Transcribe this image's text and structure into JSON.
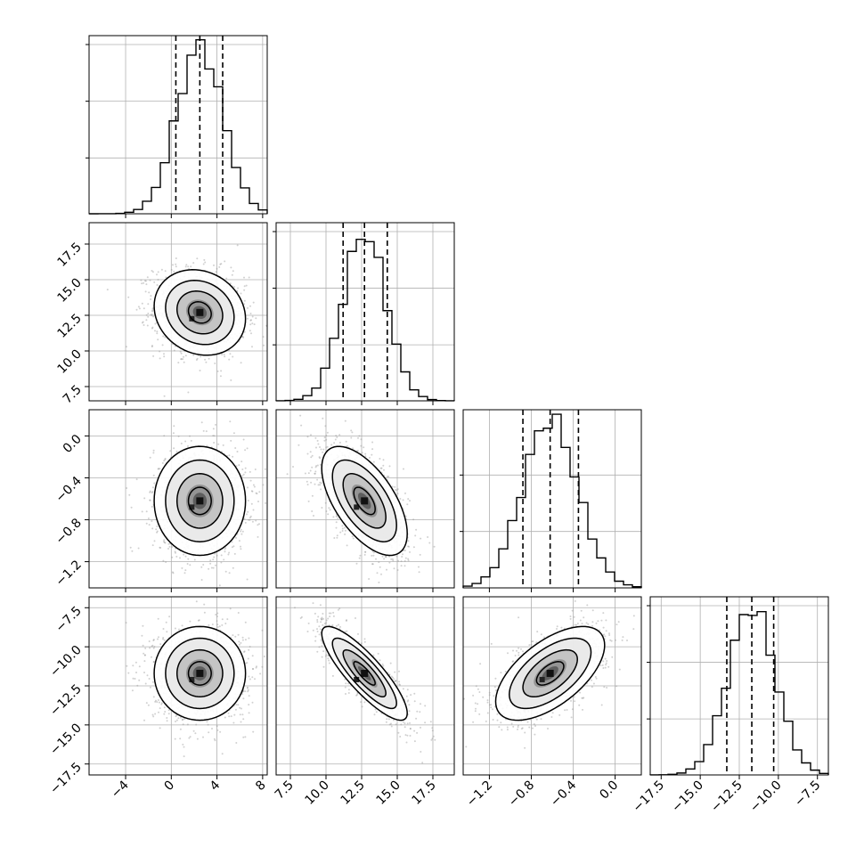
{
  "chart_data": {
    "type": "corner",
    "parameters": [
      {
        "id": "p0",
        "ticks": [
          -4,
          0,
          4,
          8
        ],
        "tick_labels": [
          "−4",
          "0",
          "4",
          "8"
        ],
        "range": [
          -7.2,
          8.4
        ],
        "quantiles": [
          0.4,
          2.5,
          4.5
        ],
        "mean": 2.5,
        "sd": 2.0,
        "hist_peak_density": 0.2,
        "hist_ticks": [
          0.066,
          0.133,
          0.2
        ]
      },
      {
        "id": "p1",
        "ticks": [
          7.5,
          10.0,
          12.5,
          15.0,
          17.5
        ],
        "tick_labels": [
          "7.5",
          "10.0",
          "12.5",
          "15.0",
          "17.5"
        ],
        "range": [
          6.5,
          19.0
        ],
        "quantiles": [
          11.2,
          12.7,
          14.3
        ],
        "mean": 12.7,
        "sd": 1.5,
        "hist_peak_density": 0.266,
        "hist_ticks": [
          0.088,
          0.177,
          0.266
        ]
      },
      {
        "id": "p2",
        "ticks": [
          -1.2,
          -0.8,
          -0.4,
          0.0
        ],
        "tick_labels": [
          "−1.2",
          "−0.8",
          "−0.4",
          "0.0"
        ],
        "range": [
          -1.45,
          0.25
        ],
        "quantiles": [
          -0.88,
          -0.62,
          -0.35
        ],
        "mean": -0.62,
        "sd": 0.26,
        "hist_peak_density": 1.53,
        "hist_ticks": [
          0.51,
          1.02
        ]
      },
      {
        "id": "p3",
        "ticks": [
          -17.5,
          -15.0,
          -12.5,
          -10.0,
          -7.5
        ],
        "tick_labels": [
          "−17.5",
          "−15.0",
          "−12.5",
          "−10.0",
          "−7.5"
        ],
        "range": [
          -18.2,
          -6.8
        ],
        "quantiles": [
          -13.3,
          -11.7,
          -10.3
        ],
        "mean": -11.7,
        "sd": 1.5,
        "hist_peak_density": 0.266,
        "hist_ticks": [
          0.088,
          0.177,
          0.266
        ]
      }
    ],
    "correlations": [
      {
        "i": 0,
        "j": 1,
        "rho": -0.15
      },
      {
        "i": 0,
        "j": 2,
        "rho": 0.0
      },
      {
        "i": 1,
        "j": 2,
        "rho": -0.6
      },
      {
        "i": 0,
        "j": 3,
        "rho": 0.0
      },
      {
        "i": 1,
        "j": 3,
        "rho": -0.85
      },
      {
        "i": 2,
        "j": 3,
        "rho": 0.6
      }
    ],
    "contour_levels_sigma": [
      0.5,
      1.0,
      1.5,
      2.0
    ],
    "histogram_bins": 20,
    "grid": true,
    "quantile_line_style": "dashed"
  }
}
